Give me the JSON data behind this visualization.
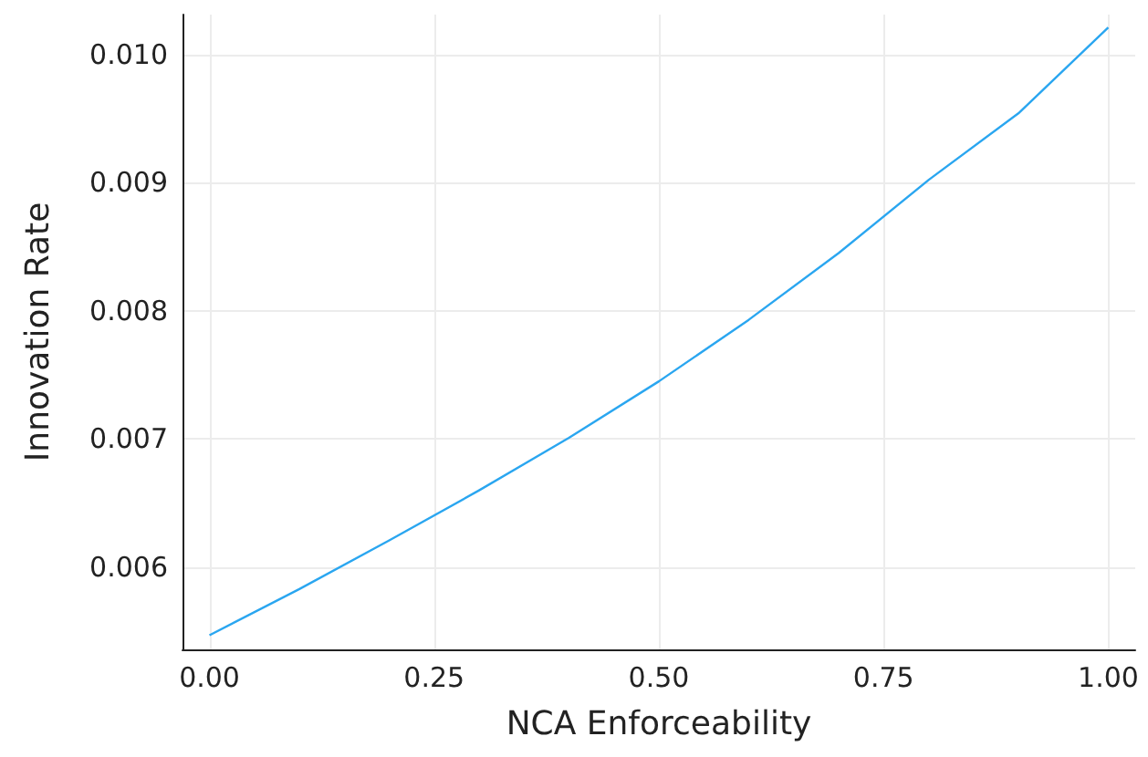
{
  "chart_data": {
    "type": "line",
    "xlabel": "NCA Enforceability",
    "ylabel": "Innovation Rate",
    "x": [
      0,
      0.1,
      0.2,
      0.3,
      0.4,
      0.5,
      0.6,
      0.7,
      0.8,
      0.9,
      1.0
    ],
    "series": [
      {
        "color": "#2aa6f0",
        "values": [
          0.00547,
          0.00583,
          0.00621,
          0.0066,
          0.00701,
          0.00745,
          0.00793,
          0.00845,
          0.00902,
          0.00954,
          0.01021
        ]
      }
    ],
    "xlim": [
      -0.03,
      1.03
    ],
    "ylim": [
      0.00536,
      0.01031
    ],
    "xticks": [
      {
        "value": 0,
        "label": "0.00"
      },
      {
        "value": 0.25,
        "label": "0.25"
      },
      {
        "value": 0.5,
        "label": "0.50"
      },
      {
        "value": 0.75,
        "label": "0.75"
      },
      {
        "value": 1,
        "label": "1.00"
      }
    ],
    "yticks": [
      {
        "value": 0.006,
        "label": "0.006"
      },
      {
        "value": 0.007,
        "label": "0.007"
      },
      {
        "value": 0.008,
        "label": "0.008"
      },
      {
        "value": 0.009,
        "label": "0.009"
      },
      {
        "value": 0.01,
        "label": "0.010"
      }
    ],
    "grid": true,
    "marker": "none",
    "line_style": "solid"
  }
}
